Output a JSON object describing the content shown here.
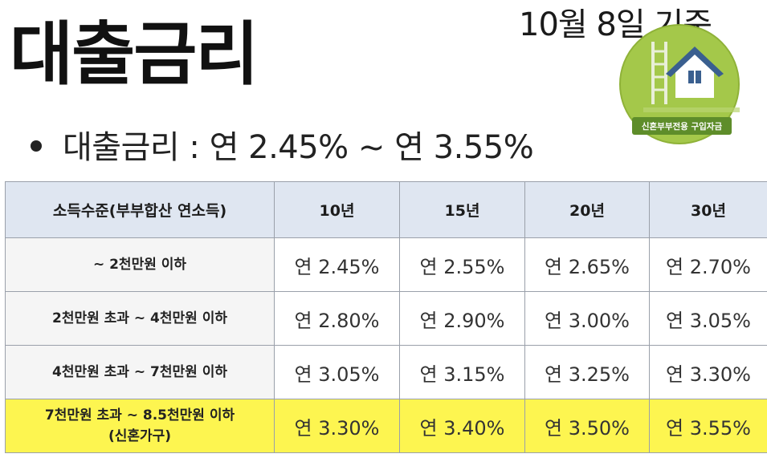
{
  "title": "대출금리",
  "date_note": "10월 8일 기준",
  "logo": {
    "text": "신혼부부전용 구입자금",
    "icon": "house-ladder-icon",
    "accent": "#9bbf3a"
  },
  "summary": "대출금리 : 연 2.45% ~ 연 3.55%",
  "table": {
    "headers": [
      "소득수준(부부합산 연소득)",
      "10년",
      "15년",
      "20년",
      "30년"
    ],
    "rows": [
      {
        "label": "~ 2천만원 이하",
        "label2": "",
        "rates": [
          "연 2.45%",
          "연 2.55%",
          "연 2.65%",
          "연 2.70%"
        ]
      },
      {
        "label": "2천만원 초과 ~ 4천만원 이하",
        "label2": "",
        "rates": [
          "연 2.80%",
          "연 2.90%",
          "연 3.00%",
          "연 3.05%"
        ]
      },
      {
        "label": "4천만원 초과 ~ 7천만원 이하",
        "label2": "",
        "rates": [
          "연 3.05%",
          "연 3.15%",
          "연 3.25%",
          "연 3.30%"
        ]
      },
      {
        "label": "7천만원 초과 ~ 8.5천만원 이하",
        "label2": "(신혼가구)",
        "rates": [
          "연 3.30%",
          "연 3.40%",
          "연 3.50%",
          "연 3.55%"
        ]
      }
    ],
    "highlight_color": "#fdf550",
    "header_color": "#dfe6f1"
  }
}
